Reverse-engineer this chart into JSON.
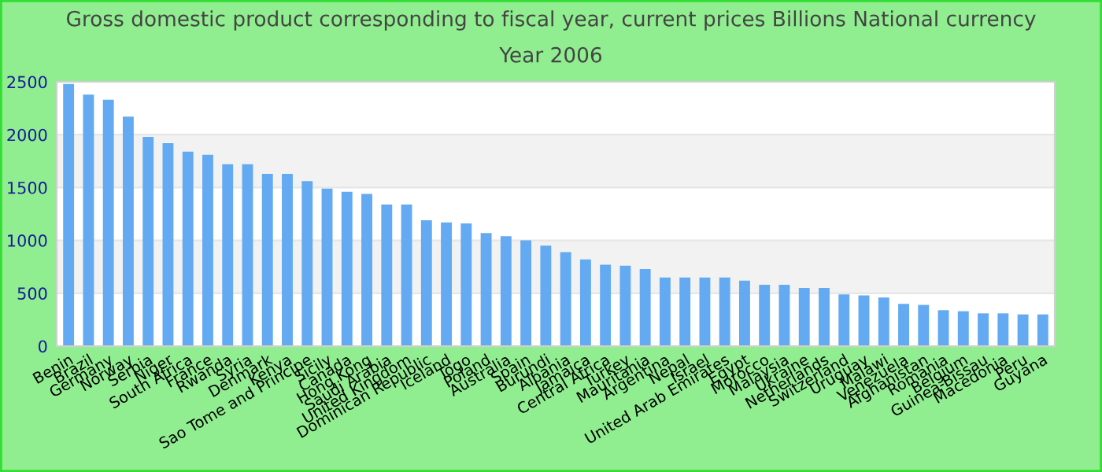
{
  "chart_data": {
    "type": "bar",
    "title": "Gross domestic product corresponding to fiscal year, current prices Billions National currency",
    "subtitle": "Year 2006",
    "categories": [
      "Benin",
      "Brazil",
      "Germany",
      "Norway",
      "Serbia",
      "Niger",
      "South Africa",
      "France",
      "Rwanda",
      "Syria",
      "Denmark",
      "Kenya",
      "Sao Tome and Principe",
      "Sicily",
      "Canada",
      "Hong Kong",
      "Saudi Arabia",
      "United Kingdom",
      "Dominican Republic",
      "Iceland",
      "Togo",
      "Poland",
      "Australia",
      "Spain",
      "Burundi",
      "Albania",
      "Jamaica",
      "Central Africa",
      "Turkey",
      "Mauritania",
      "Argentina",
      "Nepal",
      "Israel",
      "United Arab Emirates",
      "Egypt",
      "Morocco",
      "Malaysia",
      "Ukraine",
      "Netherlands",
      "Switzerland",
      "Uruguay",
      "Malawi",
      "Venezuela",
      "Afghanistan",
      "Romania",
      "Belgium",
      "Guinea-Bissau",
      "Macedonia",
      "Peru",
      "Guyana"
    ],
    "values": [
      2480,
      2380,
      2330,
      2170,
      1980,
      1920,
      1840,
      1810,
      1720,
      1720,
      1630,
      1630,
      1560,
      1490,
      1460,
      1440,
      1340,
      1340,
      1190,
      1170,
      1160,
      1070,
      1040,
      1000,
      950,
      890,
      820,
      770,
      760,
      730,
      650,
      650,
      650,
      650,
      620,
      580,
      580,
      550,
      550,
      490,
      480,
      460,
      400,
      390,
      340,
      330,
      310,
      310,
      300,
      300
    ],
    "color": "#63aaf2",
    "ylim": [
      0,
      2500
    ],
    "yticks": [
      0,
      500,
      1000,
      1500,
      2000,
      2500
    ],
    "grid": "y"
  }
}
